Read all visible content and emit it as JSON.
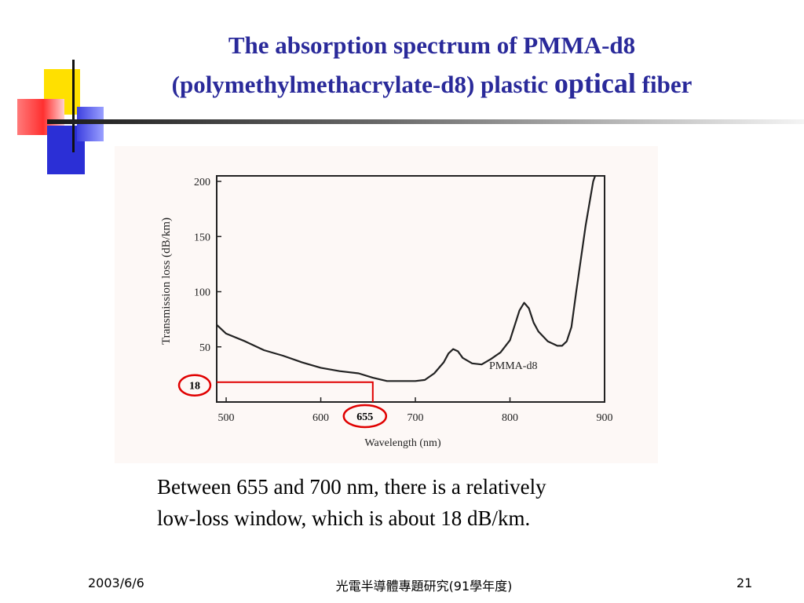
{
  "slide": {
    "title_line1": "The absorption spectrum of PMMA-d8",
    "title_line2_a": "(polymethylmethacrylate-d8) plastic ",
    "title_line2_b": "optical",
    "title_line2_c": " fiber",
    "caption_line1": "Between 655 and 700 nm, there is a relatively",
    "caption_line2": "low-loss window, which is about 18 dB/km.",
    "footer_date": "2003/6/6",
    "footer_center": "光電半導體專題研究(91學年度)",
    "footer_page": "21",
    "colors": {
      "title": "#2a2a9a",
      "highlight": "#e00000"
    }
  },
  "chart_data": {
    "type": "line",
    "title": "",
    "xlabel": "Wavelength (nm)",
    "ylabel": "Transmission loss (dB/km)",
    "xlim": [
      490,
      900
    ],
    "ylim": [
      0,
      205
    ],
    "xticks": [
      500,
      600,
      700,
      800,
      900
    ],
    "yticks": [
      50,
      100,
      150,
      200
    ],
    "grid": false,
    "series": [
      {
        "name": "PMMA-d8",
        "x": [
          490,
          500,
          520,
          540,
          560,
          580,
          600,
          620,
          640,
          655,
          670,
          690,
          700,
          710,
          720,
          730,
          735,
          740,
          745,
          750,
          760,
          770,
          780,
          790,
          800,
          810,
          815,
          820,
          825,
          830,
          840,
          850,
          855,
          860,
          865,
          870,
          875,
          880,
          884,
          888,
          890
        ],
        "y": [
          70,
          62,
          55,
          47,
          42,
          36,
          31,
          28,
          26,
          22,
          19,
          19,
          19,
          20,
          26,
          36,
          44,
          48,
          46,
          40,
          35,
          34,
          39,
          45,
          56,
          83,
          90,
          85,
          72,
          64,
          55,
          51,
          51,
          55,
          68,
          100,
          130,
          160,
          180,
          200,
          205
        ]
      }
    ],
    "annotations": {
      "y_marker_label": "18",
      "y_marker_value": 18,
      "x_marker_label": "655",
      "x_marker_value": 655,
      "series_label": "PMMA-d8"
    }
  }
}
